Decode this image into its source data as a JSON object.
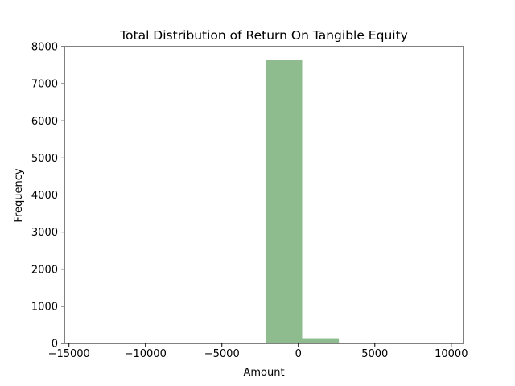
{
  "chart_data": {
    "type": "bar",
    "title": "Total Distribution of Return On Tangible Equity",
    "xlabel": "Amount",
    "ylabel": "Frequency",
    "xlim": [
      -15300,
      10800
    ],
    "ylim": [
      0,
      8000
    ],
    "xticks": [
      -15000,
      -10000,
      -5000,
      0,
      5000,
      10000
    ],
    "xtick_labels": [
      "−15000",
      "−10000",
      "−5000",
      "0",
      "5000",
      "10000"
    ],
    "yticks": [
      0,
      1000,
      2000,
      3000,
      4000,
      5000,
      6000,
      7000,
      8000
    ],
    "ytick_labels": [
      "0",
      "1000",
      "2000",
      "3000",
      "4000",
      "5000",
      "6000",
      "7000",
      "8000"
    ],
    "bin_edges": [
      -2100,
      250,
      2650
    ],
    "values": [
      7650,
      140
    ],
    "bar_color": "#8fbc8f",
    "grid": false
  }
}
